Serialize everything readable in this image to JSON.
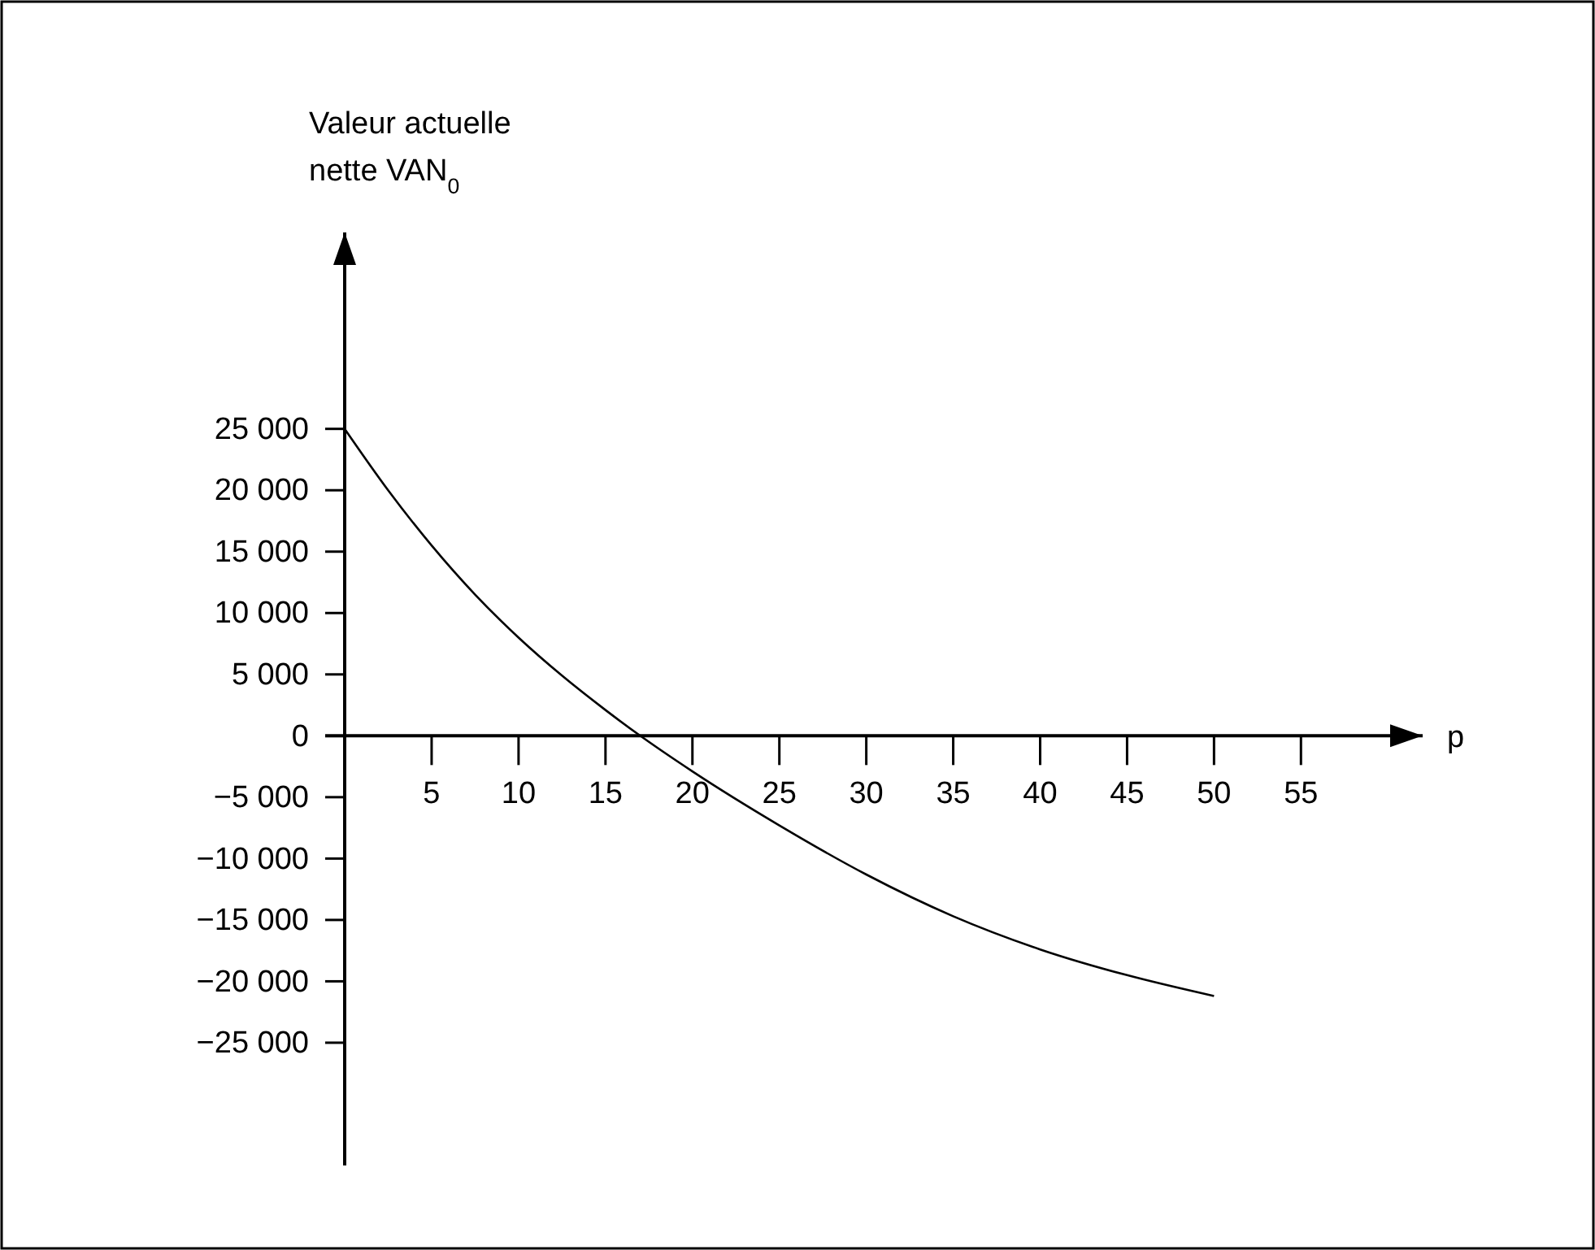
{
  "chart_data": {
    "type": "line",
    "ylabel": "Valeur actuelle\nnette VAN$_{0}$",
    "xlabel": "p",
    "x": [
      0,
      2.5,
      5,
      7.5,
      10,
      12.5,
      15,
      17,
      20,
      25,
      30,
      35,
      40,
      45,
      50
    ],
    "series": [
      {
        "color": "#000000",
        "values": [
          25000,
          20000,
          15500,
          11500,
          8000,
          4900,
          2100,
          0,
          -2900,
          -7300,
          -11300,
          -14700,
          -17400,
          -19500,
          -21200
        ]
      }
    ],
    "xlim": [
      0,
      62
    ],
    "ylim": [
      -35000,
      41000
    ],
    "xticks": [
      5,
      10,
      15,
      20,
      25,
      30,
      35,
      40,
      45,
      50,
      55
    ],
    "yticks": [
      {
        "value": 25000,
        "label": "25 000"
      },
      {
        "value": 20000,
        "label": "20 000"
      },
      {
        "value": 15000,
        "label": "15 000"
      },
      {
        "value": 10000,
        "label": "10 000"
      },
      {
        "value": 5000,
        "label": "5 000"
      },
      0,
      {
        "value": -5000,
        "label": "−5 000"
      },
      {
        "value": -10000,
        "label": "−10 000"
      },
      {
        "value": -15000,
        "label": "−15 000"
      },
      {
        "value": -20000,
        "label": "−20 000"
      },
      {
        "value": -25000,
        "label": "−25 000"
      }
    ],
    "grid": false,
    "marker": "none",
    "line_style": "solid"
  }
}
